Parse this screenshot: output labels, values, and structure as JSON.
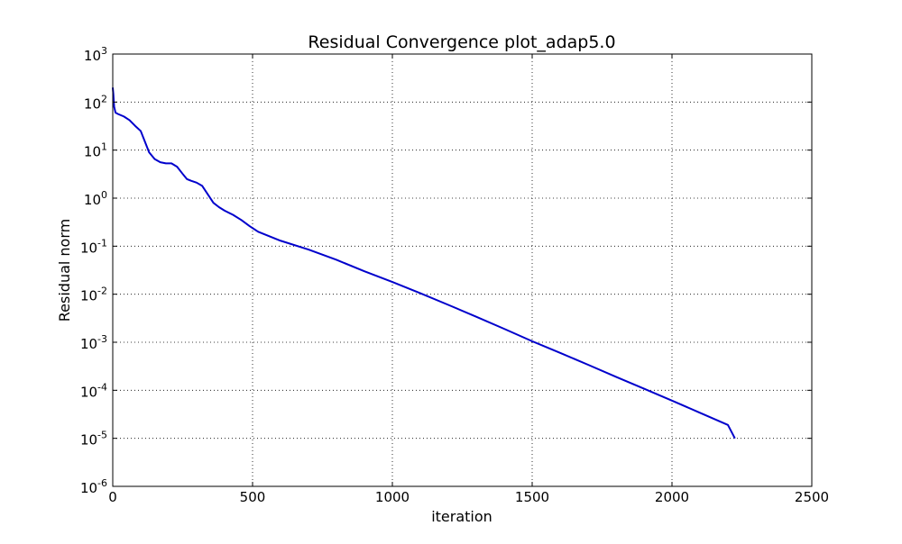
{
  "chart_data": {
    "type": "line",
    "title": "Residual Convergence plot_adap5.0",
    "xlabel": "iteration",
    "ylabel": "Residual norm",
    "xlim": [
      0,
      2500
    ],
    "ylim": [
      1e-06,
      1000
    ],
    "yscale": "log",
    "grid": true,
    "xticks": [
      0,
      500,
      1000,
      1500,
      2000,
      2500
    ],
    "yticks": [
      {
        "base": "10",
        "exp": "-6",
        "value": 1e-06
      },
      {
        "base": "10",
        "exp": "-5",
        "value": 1e-05
      },
      {
        "base": "10",
        "exp": "-4",
        "value": 0.0001
      },
      {
        "base": "10",
        "exp": "-3",
        "value": 0.001
      },
      {
        "base": "10",
        "exp": "-2",
        "value": 0.01
      },
      {
        "base": "10",
        "exp": "-1",
        "value": 0.1
      },
      {
        "base": "10",
        "exp": "0",
        "value": 1
      },
      {
        "base": "10",
        "exp": "1",
        "value": 10
      },
      {
        "base": "10",
        "exp": "2",
        "value": 100
      },
      {
        "base": "10",
        "exp": "3",
        "value": 1000
      }
    ],
    "series": [
      {
        "color": "#0000cc",
        "x": [
          0,
          2,
          5,
          10,
          20,
          40,
          60,
          80,
          100,
          115,
          130,
          150,
          170,
          190,
          210,
          230,
          250,
          265,
          280,
          300,
          320,
          340,
          360,
          380,
          400,
          430,
          460,
          490,
          520,
          550,
          600,
          700,
          800,
          900,
          1000,
          1100,
          1200,
          1300,
          1400,
          1500,
          1600,
          1700,
          1800,
          1900,
          2000,
          2100,
          2200,
          2225
        ],
        "y": [
          200,
          150,
          80,
          60,
          56,
          50,
          42,
          32,
          25,
          15,
          9,
          6.5,
          5.6,
          5.3,
          5.3,
          4.5,
          3.2,
          2.5,
          2.3,
          2.1,
          1.8,
          1.2,
          0.8,
          0.65,
          0.55,
          0.45,
          0.35,
          0.26,
          0.2,
          0.17,
          0.13,
          0.085,
          0.052,
          0.03,
          0.018,
          0.0105,
          0.006,
          0.0034,
          0.0019,
          0.00105,
          0.0006,
          0.00034,
          0.00019,
          0.000108,
          6.1e-05,
          3.4e-05,
          1.9e-05,
          1e-05
        ]
      }
    ]
  }
}
